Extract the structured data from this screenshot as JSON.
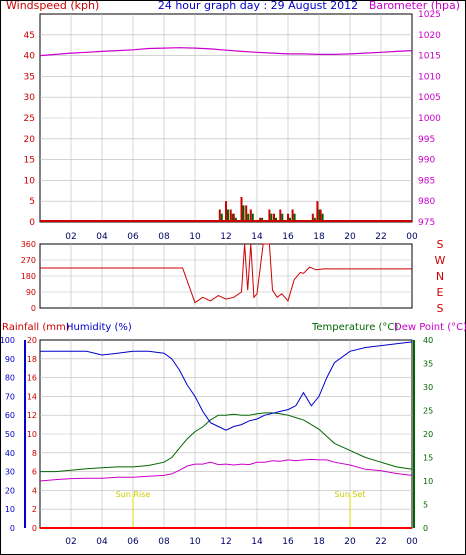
{
  "header": {
    "left": "Windspeed (kph)",
    "center": "24 hour graph day : 29 August 2012",
    "right": "Barometer (hpa)"
  },
  "x_ticks": [
    "02",
    "04",
    "06",
    "08",
    "10",
    "12",
    "14",
    "16",
    "18",
    "20",
    "22",
    "00"
  ],
  "colors": {
    "wind": "#cc0000",
    "baro": "#cc00cc",
    "humidity": "#0000cc",
    "temperature": "#006600",
    "dew": "#cc00cc",
    "rain": "#ff0000",
    "sun": "#dddd00",
    "grid": "#bbbbbb"
  },
  "chart_data": [
    {
      "type": "line",
      "panel": "wind-barometer",
      "title": "24 hour graph day : 29 August 2012",
      "xlabel": "",
      "ylabel_left": "Windspeed (kph)",
      "ylabel_right": "Barometer (hpa)",
      "x_hours": [
        0,
        1,
        2,
        3,
        4,
        5,
        6,
        7,
        8,
        9,
        10,
        11,
        12,
        13,
        14,
        15,
        16,
        17,
        18,
        19,
        20,
        21,
        22,
        23,
        24
      ],
      "ylim_left": [
        0,
        45
      ],
      "yticks_left": [
        "0",
        "5",
        "10",
        "15",
        "20",
        "25",
        "30",
        "35",
        "40",
        "45"
      ],
      "ylim_right": [
        975,
        1025
      ],
      "yticks_right": [
        "975",
        "980",
        "985",
        "990",
        "995",
        "1000",
        "1005",
        "1010",
        "1015",
        "1020",
        "1025"
      ],
      "series": [
        {
          "name": "Barometer (hpa)",
          "axis": "right",
          "values": [
            1015.0,
            1015.3,
            1015.6,
            1015.8,
            1016.0,
            1016.2,
            1016.4,
            1016.7,
            1016.8,
            1016.9,
            1016.8,
            1016.6,
            1016.3,
            1016.0,
            1015.8,
            1015.6,
            1015.4,
            1015.4,
            1015.3,
            1015.3,
            1015.4,
            1015.6,
            1015.8,
            1016.0,
            1016.2
          ]
        }
      ],
      "bars": {
        "name": "Windspeed (kph)",
        "axis": "left",
        "hours": [
          11.6,
          12.0,
          12.3,
          12.5,
          13.0,
          13.3,
          13.6,
          14.2,
          14.8,
          15.1,
          15.5,
          16.0,
          16.3,
          17.6,
          17.9,
          18.1
        ],
        "gust": [
          3,
          5,
          3,
          2,
          6,
          4,
          3,
          1,
          3,
          2,
          3,
          2,
          3,
          2,
          5,
          3
        ],
        "avg": [
          2,
          3,
          2,
          1,
          4,
          2,
          2,
          1,
          2,
          1,
          2,
          1,
          2,
          1,
          3,
          2
        ]
      }
    },
    {
      "type": "line",
      "panel": "wind-direction",
      "ylim": [
        0,
        360
      ],
      "yticks": [
        "0",
        "90",
        "180",
        "270",
        "360"
      ],
      "compass_labels": [
        "S",
        "E",
        "N",
        "W",
        "S"
      ],
      "x_hours": [
        0,
        9.2,
        10.0,
        10.5,
        11.0,
        11.5,
        12.0,
        12.5,
        13.0,
        13.2,
        13.4,
        13.6,
        13.8,
        14.0,
        14.4,
        14.8,
        15.0,
        15.3,
        15.6,
        16.0,
        16.4,
        16.8,
        17.0,
        17.4,
        17.8,
        18.3,
        24
      ],
      "values": [
        225,
        225,
        30,
        60,
        40,
        70,
        50,
        60,
        90,
        360,
        100,
        360,
        60,
        80,
        360,
        360,
        100,
        60,
        80,
        40,
        160,
        200,
        195,
        230,
        215,
        220,
        220
      ]
    },
    {
      "type": "line",
      "panel": "rain-humidity-temperature",
      "xlabel": "",
      "labels": {
        "rain": "Rainfall (mm)",
        "humidity": "Humidity (%)",
        "temperature": "Temperature (°C)",
        "dew": "Dew Point (°C)"
      },
      "ylim_rain": [
        0,
        20
      ],
      "yticks_rain": [
        "0",
        "2",
        "4",
        "6",
        "8",
        "10",
        "12",
        "14",
        "16",
        "18",
        "20"
      ],
      "ylim_humidity": [
        0,
        100
      ],
      "yticks_humidity": [
        "0",
        "10",
        "20",
        "30",
        "40",
        "50",
        "60",
        "70",
        "80",
        "90",
        "100"
      ],
      "ylim_temp": [
        0,
        40
      ],
      "yticks_temp": [
        "0",
        "5",
        "10",
        "15",
        "20",
        "25",
        "30",
        "35",
        "40"
      ],
      "sun_rise": {
        "hour": 6.0,
        "label": "Sun Rise"
      },
      "sun_set": {
        "hour": 20.0,
        "label": "Sun Set"
      },
      "x_hours": [
        0,
        1,
        2,
        3,
        4,
        5,
        6,
        7,
        8,
        8.5,
        9,
        9.5,
        10,
        10.5,
        11,
        11.5,
        12,
        12.5,
        13,
        13.5,
        14,
        14.5,
        15,
        15.5,
        16,
        16.5,
        17,
        17.5,
        18,
        18.5,
        19,
        20,
        21,
        22,
        23,
        24
      ],
      "series": [
        {
          "name": "Humidity (%)",
          "values": [
            94,
            94,
            94,
            94,
            92,
            93,
            94,
            94,
            93,
            90,
            84,
            76,
            70,
            62,
            56,
            54,
            52,
            54,
            55,
            57,
            58,
            60,
            61,
            62,
            63,
            65,
            72,
            65,
            70,
            80,
            88,
            94,
            96,
            97,
            98,
            99
          ]
        },
        {
          "name": "Temperature (°C)",
          "values": [
            12,
            12,
            12.3,
            12.6,
            12.8,
            13,
            13,
            13.3,
            14,
            15,
            17,
            19,
            20.5,
            21.5,
            23,
            24,
            24,
            24.2,
            24,
            24,
            24.3,
            24.5,
            24.5,
            24.3,
            24,
            23.5,
            23,
            22,
            21,
            19.5,
            18,
            16.5,
            15,
            14,
            13,
            12.5
          ]
        },
        {
          "name": "Dew Point (°C)",
          "values": [
            10,
            10.3,
            10.5,
            10.6,
            10.6,
            10.8,
            10.8,
            11,
            11.2,
            11.5,
            12.3,
            13.2,
            13.6,
            13.6,
            14,
            13.5,
            13.6,
            13.4,
            13.6,
            13.5,
            14,
            14,
            14.3,
            14.2,
            14.5,
            14.3,
            14.5,
            14.6,
            14.5,
            14.5,
            14,
            13.4,
            12.5,
            12.2,
            11.6,
            11.2
          ]
        },
        {
          "name": "Rainfall (mm)",
          "values": [
            0,
            0,
            0,
            0,
            0,
            0,
            0,
            0,
            0,
            0,
            0,
            0,
            0,
            0,
            0,
            0,
            0,
            0,
            0,
            0,
            0,
            0,
            0,
            0,
            0,
            0,
            0,
            0,
            0,
            0,
            0,
            0,
            0,
            0,
            0,
            0
          ]
        }
      ]
    }
  ]
}
